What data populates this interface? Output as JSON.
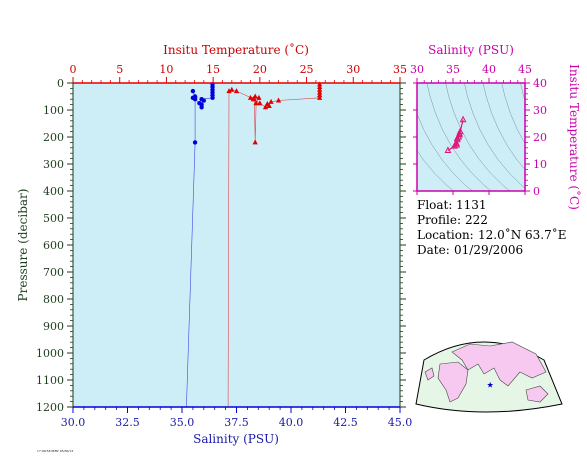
{
  "colors": {
    "panel_bg": "#cdeef7",
    "temp": "#e00000",
    "salt": "#0000dd",
    "ts": "#e0157a",
    "magenta_axis": "#cc00aa",
    "pressure_axis": "#1e3c1e",
    "land": "#f7c8f0",
    "ocean": "#e6f6e6"
  },
  "chart_data": [
    {
      "type": "line",
      "panel": "profile",
      "top_axis": {
        "label": "Insitu Temperature (˚C)",
        "range": [
          0,
          35
        ],
        "ticks": [
          0,
          5,
          10,
          15,
          20,
          25,
          30,
          35
        ],
        "tick_labels": [
          "0",
          "5",
          "10",
          "15",
          "20",
          "25",
          "30",
          "35"
        ]
      },
      "bottom_axis": {
        "label": "Salinity (PSU)",
        "range": [
          30,
          45
        ],
        "ticks": [
          30,
          32.5,
          35,
          37.5,
          40,
          42.5,
          45
        ],
        "tick_labels": [
          "30.0",
          "32.5",
          "35.0",
          "37.5",
          "40.0",
          "42.5",
          "45.0"
        ]
      },
      "y_axis": {
        "label": "Pressure (decibar)",
        "range": [
          0,
          1200
        ],
        "inverted": true,
        "ticks": [
          0,
          100,
          200,
          300,
          400,
          500,
          600,
          700,
          800,
          900,
          1000,
          1100,
          1200
        ],
        "tick_labels": [
          "0",
          "100",
          "200",
          "300",
          "400",
          "500",
          "600",
          "700",
          "800",
          "900",
          "1000",
          "1100",
          "1200"
        ]
      },
      "series": [
        {
          "variable": "temperature",
          "marker": "triangle",
          "points": [
            {
              "x": 26.4,
              "p": 5
            },
            {
              "x": 26.4,
              "p": 15
            },
            {
              "x": 26.4,
              "p": 25
            },
            {
              "x": 26.4,
              "p": 35
            },
            {
              "x": 26.4,
              "p": 45
            },
            {
              "x": 26.4,
              "p": 55
            },
            {
              "x": 22.0,
              "p": 65
            },
            {
              "x": 21.2,
              "p": 70
            },
            {
              "x": 20.8,
              "p": 78
            },
            {
              "x": 21.0,
              "p": 85
            },
            {
              "x": 20.6,
              "p": 90
            },
            {
              "x": 20.0,
              "p": 75
            },
            {
              "x": 19.3,
              "p": 60
            },
            {
              "x": 19.0,
              "p": 55
            },
            {
              "x": 19.5,
              "p": 50
            },
            {
              "x": 19.9,
              "p": 55
            },
            {
              "x": 19.6,
              "p": 75
            },
            {
              "x": 19.5,
              "p": 220
            },
            {
              "x": 19.4,
              "p": 60
            },
            {
              "x": 17.5,
              "p": 30
            },
            {
              "x": 17.0,
              "p": 25
            },
            {
              "x": 16.7,
              "p": 30
            },
            {
              "x": 16.6,
              "p": 1200
            }
          ]
        },
        {
          "variable": "salinity",
          "marker": "circle",
          "points": [
            {
              "x": 36.4,
              "p": 5
            },
            {
              "x": 36.4,
              "p": 15
            },
            {
              "x": 36.4,
              "p": 25
            },
            {
              "x": 36.4,
              "p": 35
            },
            {
              "x": 36.4,
              "p": 45
            },
            {
              "x": 36.4,
              "p": 55
            },
            {
              "x": 35.9,
              "p": 60
            },
            {
              "x": 36.0,
              "p": 65
            },
            {
              "x": 35.9,
              "p": 80
            },
            {
              "x": 35.9,
              "p": 90
            },
            {
              "x": 35.8,
              "p": 75
            },
            {
              "x": 35.6,
              "p": 60
            },
            {
              "x": 35.5,
              "p": 55
            },
            {
              "x": 35.6,
              "p": 50
            },
            {
              "x": 35.5,
              "p": 30
            },
            {
              "x": 35.6,
              "p": 55
            },
            {
              "x": 35.6,
              "p": 220
            },
            {
              "x": 35.2,
              "p": 1200
            }
          ]
        }
      ]
    },
    {
      "type": "scatter",
      "panel": "ts_diagram",
      "x_axis": {
        "label": "Salinity (PSU)",
        "range": [
          30,
          45
        ],
        "ticks": [
          30,
          35,
          40,
          45
        ],
        "tick_labels": [
          "30",
          "35",
          "40",
          "45"
        ]
      },
      "y_axis": {
        "label": "Insitu Temperature (˚C)",
        "range": [
          0,
          40
        ],
        "ticks": [
          0,
          10,
          20,
          30,
          40
        ],
        "tick_labels": [
          "0",
          "10",
          "20",
          "30",
          "40"
        ]
      },
      "density_contours": true,
      "points": [
        {
          "s": 36.4,
          "t": 26.4
        },
        {
          "s": 36.0,
          "t": 22.0
        },
        {
          "s": 35.9,
          "t": 21.2
        },
        {
          "s": 35.9,
          "t": 20.8
        },
        {
          "s": 35.8,
          "t": 20.0
        },
        {
          "s": 35.6,
          "t": 19.5
        },
        {
          "s": 35.6,
          "t": 19.0
        },
        {
          "s": 35.5,
          "t": 17.5
        },
        {
          "s": 35.5,
          "t": 17.0
        },
        {
          "s": 35.2,
          "t": 16.6
        },
        {
          "s": 34.3,
          "t": 15.0
        }
      ]
    }
  ],
  "info": {
    "float_label": "Float:",
    "float_value": "1131",
    "profile_label": "Profile:",
    "profile_value": "222",
    "location_label": "Location:",
    "location_value": "12.0˚N  63.7˚E",
    "date_label": "Date:",
    "date_value": "01/29/2006"
  },
  "map": {
    "marker": "star",
    "lat": 12.0,
    "lon": 63.7
  },
  "stamp": "17:09:58 MRV 05/30/13"
}
